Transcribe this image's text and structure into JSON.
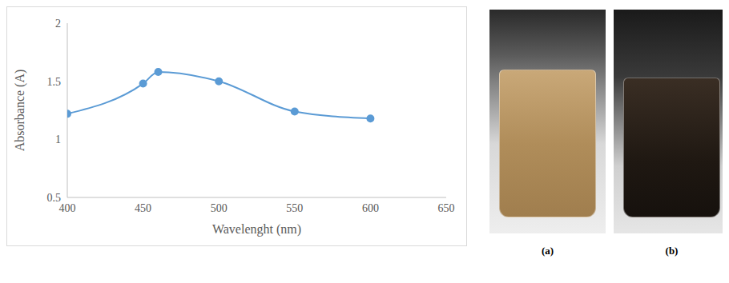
{
  "chart_data": {
    "type": "line",
    "x_label": "Wavelenght (nm)",
    "y_label": "Absorbance (A)",
    "x": [
      400,
      450,
      460,
      500,
      550,
      600
    ],
    "values": [
      1.22,
      1.48,
      1.58,
      1.5,
      1.24,
      1.18
    ],
    "color": "#5b9bd5",
    "marker": "circle",
    "line_style": "solid",
    "xlim": [
      400,
      650
    ],
    "xticks": [
      400,
      450,
      500,
      550,
      600,
      650
    ],
    "ylim": [
      0.5,
      2
    ],
    "yticks": [
      0.5,
      1,
      1.5,
      2
    ],
    "grid": false
  },
  "images": [
    {
      "label": "(a)"
    },
    {
      "label": "(b)"
    }
  ]
}
